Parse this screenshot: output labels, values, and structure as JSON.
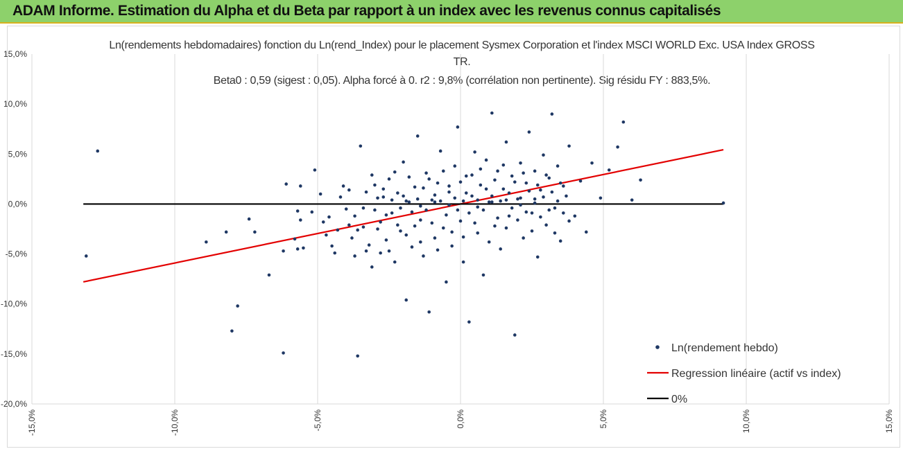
{
  "banner": {
    "text": "ADAM Informe. Estimation du Alpha et du Beta par rapport à un index avec les revenus connus capitalisés",
    "background": "#8dd16b",
    "border_color": "#d8b11e"
  },
  "chart_data": {
    "type": "scatter",
    "title": "Ln(rendements hebdomadaires) fonction du Ln(rend_Index) pour le placement Sysmex Corporation et l'index MSCI WORLD Exc. USA Index GROSS",
    "title_line2": "TR.",
    "subtitle": "Beta0 : 0,59 (sigest : 0,05). Alpha forcé à 0. r2 : 9,8% (corrélation non pertinente). Sig résidu FY : 883,5%.",
    "xlim": [
      -0.15,
      0.15
    ],
    "ylim": [
      -0.2,
      0.15
    ],
    "x_ticks": [
      -0.15,
      -0.1,
      -0.05,
      0.0,
      0.05,
      0.1,
      0.15
    ],
    "x_tick_labels": [
      "-15,0%",
      "-10,0%",
      "-5,0%",
      "0,0%",
      "5,0%",
      "10,0%",
      "15,0%"
    ],
    "y_ticks": [
      -0.2,
      -0.15,
      -0.1,
      -0.05,
      0.0,
      0.05,
      0.1,
      0.15
    ],
    "y_tick_labels": [
      "-20,0%",
      "-15,0%",
      "-10,0%",
      "-5,0%",
      "0,0%",
      "5,0%",
      "10,0%",
      "15,0%"
    ],
    "grid": "vertical",
    "legend_position": "bottom-right",
    "series": [
      {
        "name": "Ln(rendement hebdo)",
        "kind": "scatter",
        "color": "#1f3864",
        "points": [
          [
            -0.131,
            -0.052
          ],
          [
            -0.127,
            0.053
          ],
          [
            -0.089,
            -0.038
          ],
          [
            -0.082,
            -0.028
          ],
          [
            -0.08,
            -0.127
          ],
          [
            -0.078,
            -0.102
          ],
          [
            -0.074,
            -0.015
          ],
          [
            -0.072,
            -0.028
          ],
          [
            -0.067,
            -0.071
          ],
          [
            -0.062,
            -0.047
          ],
          [
            -0.062,
            -0.149
          ],
          [
            -0.061,
            0.02
          ],
          [
            -0.058,
            -0.035
          ],
          [
            -0.057,
            -0.045
          ],
          [
            -0.057,
            -0.007
          ],
          [
            -0.056,
            -0.016
          ],
          [
            -0.056,
            0.018
          ],
          [
            -0.055,
            -0.044
          ],
          [
            -0.051,
            0.034
          ],
          [
            -0.048,
            -0.018
          ],
          [
            -0.046,
            -0.013
          ],
          [
            -0.045,
            -0.042
          ],
          [
            -0.044,
            -0.049
          ],
          [
            -0.042,
            0.007
          ],
          [
            -0.04,
            -0.005
          ],
          [
            -0.039,
            -0.021
          ],
          [
            -0.038,
            -0.034
          ],
          [
            -0.037,
            -0.052
          ],
          [
            -0.036,
            -0.152
          ],
          [
            -0.035,
            0.058
          ],
          [
            -0.034,
            -0.023
          ],
          [
            -0.033,
            0.012
          ],
          [
            -0.032,
            -0.041
          ],
          [
            -0.031,
            -0.063
          ],
          [
            -0.03,
            0.019
          ],
          [
            -0.029,
            -0.025
          ],
          [
            -0.028,
            -0.049
          ],
          [
            -0.027,
            0.007
          ],
          [
            -0.026,
            -0.036
          ],
          [
            -0.025,
            0.025
          ],
          [
            -0.024,
            -0.009
          ],
          [
            -0.023,
            -0.058
          ],
          [
            -0.022,
            0.011
          ],
          [
            -0.021,
            -0.027
          ],
          [
            -0.02,
            0.042
          ],
          [
            -0.019,
            -0.096
          ],
          [
            -0.018,
            0.002
          ],
          [
            -0.017,
            -0.043
          ],
          [
            -0.016,
            0.017
          ],
          [
            -0.015,
            0.068
          ],
          [
            -0.014,
            -0.016
          ],
          [
            -0.013,
            -0.052
          ],
          [
            -0.012,
            0.031
          ],
          [
            -0.011,
            -0.108
          ],
          [
            -0.01,
            0.004
          ],
          [
            -0.009,
            -0.034
          ],
          [
            -0.008,
            0.021
          ],
          [
            -0.007,
            0.053
          ],
          [
            -0.006,
            -0.024
          ],
          [
            -0.005,
            -0.078
          ],
          [
            -0.004,
            0.012
          ],
          [
            -0.003,
            -0.042
          ],
          [
            -0.002,
            0.038
          ],
          [
            -0.001,
            0.077
          ],
          [
            0.0,
            -0.017
          ],
          [
            0.001,
            -0.058
          ],
          [
            0.002,
            0.028
          ],
          [
            0.003,
            -0.118
          ],
          [
            0.004,
            0.008
          ],
          [
            0.005,
            0.052
          ],
          [
            0.006,
            -0.029
          ],
          [
            0.007,
            0.019
          ],
          [
            0.008,
            -0.071
          ],
          [
            0.009,
            0.044
          ],
          [
            0.01,
            0.002
          ],
          [
            0.011,
            0.091
          ],
          [
            0.012,
            -0.022
          ],
          [
            0.013,
            0.033
          ],
          [
            0.014,
            -0.045
          ],
          [
            0.015,
            0.015
          ],
          [
            0.016,
            0.062
          ],
          [
            0.017,
            -0.012
          ],
          [
            0.018,
            0.028
          ],
          [
            0.019,
            -0.131
          ],
          [
            0.02,
            0.005
          ],
          [
            0.021,
            0.041
          ],
          [
            0.022,
            -0.034
          ],
          [
            0.023,
            0.021
          ],
          [
            0.024,
            0.072
          ],
          [
            0.025,
            -0.009
          ],
          [
            0.026,
            0.033
          ],
          [
            0.027,
            -0.053
          ],
          [
            0.028,
            0.014
          ],
          [
            0.029,
            0.049
          ],
          [
            0.03,
            -0.021
          ],
          [
            0.031,
            0.026
          ],
          [
            0.032,
            0.09
          ],
          [
            0.033,
            -0.004
          ],
          [
            0.034,
            0.038
          ],
          [
            0.035,
            -0.037
          ],
          [
            0.036,
            0.018
          ],
          [
            0.038,
            0.058
          ],
          [
            0.04,
            -0.012
          ],
          [
            0.042,
            0.023
          ],
          [
            0.044,
            -0.028
          ],
          [
            0.046,
            0.041
          ],
          [
            0.049,
            0.006
          ],
          [
            0.052,
            0.034
          ],
          [
            0.055,
            0.057
          ],
          [
            0.057,
            0.082
          ],
          [
            0.06,
            0.004
          ],
          [
            0.063,
            0.024
          ],
          [
            0.092,
            0.001
          ],
          [
            -0.052,
            -0.008
          ],
          [
            -0.049,
            0.01
          ],
          [
            -0.047,
            -0.031
          ],
          [
            -0.043,
            -0.026
          ],
          [
            -0.041,
            0.018
          ],
          [
            -0.039,
            0.014
          ],
          [
            -0.037,
            -0.012
          ],
          [
            -0.036,
            -0.026
          ],
          [
            -0.034,
            -0.004
          ],
          [
            -0.033,
            -0.047
          ],
          [
            -0.031,
            0.029
          ],
          [
            -0.03,
            -0.006
          ],
          [
            -0.029,
            0.006
          ],
          [
            -0.028,
            -0.018
          ],
          [
            -0.027,
            0.015
          ],
          [
            -0.026,
            -0.011
          ],
          [
            -0.025,
            -0.047
          ],
          [
            -0.024,
            0.004
          ],
          [
            -0.023,
            0.032
          ],
          [
            -0.022,
            -0.021
          ],
          [
            -0.021,
            -0.004
          ],
          [
            -0.02,
            0.008
          ],
          [
            -0.019,
            -0.031
          ],
          [
            -0.018,
            0.027
          ],
          [
            -0.017,
            -0.008
          ],
          [
            -0.016,
            -0.022
          ],
          [
            -0.015,
            0.005
          ],
          [
            -0.014,
            -0.038
          ],
          [
            -0.013,
            0.016
          ],
          [
            -0.012,
            -0.006
          ],
          [
            -0.011,
            0.025
          ],
          [
            -0.01,
            -0.019
          ],
          [
            -0.009,
            0.009
          ],
          [
            -0.008,
            -0.046
          ],
          [
            -0.007,
            0.003
          ],
          [
            -0.006,
            0.033
          ],
          [
            -0.005,
            -0.011
          ],
          [
            -0.004,
            0.018
          ],
          [
            -0.003,
            -0.028
          ],
          [
            -0.002,
            0.006
          ],
          [
            -0.001,
            -0.006
          ],
          [
            0.0,
            0.022
          ],
          [
            0.001,
            -0.033
          ],
          [
            0.002,
            0.011
          ],
          [
            0.003,
            -0.009
          ],
          [
            0.004,
            0.029
          ],
          [
            0.005,
            -0.019
          ],
          [
            0.006,
            0.004
          ],
          [
            0.007,
            0.035
          ],
          [
            0.008,
            -0.006
          ],
          [
            0.009,
            0.015
          ],
          [
            0.01,
            -0.038
          ],
          [
            0.011,
            0.008
          ],
          [
            0.012,
            0.024
          ],
          [
            0.013,
            -0.014
          ],
          [
            0.014,
            0.003
          ],
          [
            0.015,
            0.039
          ],
          [
            0.016,
            -0.024
          ],
          [
            0.017,
            0.011
          ],
          [
            0.018,
            -0.004
          ],
          [
            0.019,
            0.022
          ],
          [
            0.02,
            -0.016
          ],
          [
            0.021,
            0.006
          ],
          [
            0.022,
            0.031
          ],
          [
            0.023,
            -0.008
          ],
          [
            0.024,
            0.013
          ],
          [
            0.025,
            -0.027
          ],
          [
            0.026,
            0.001
          ],
          [
            0.027,
            0.019
          ],
          [
            0.028,
            -0.013
          ],
          [
            0.029,
            0.007
          ],
          [
            0.03,
            0.029
          ],
          [
            0.031,
            -0.006
          ],
          [
            0.032,
            0.012
          ],
          [
            0.033,
            -0.029
          ],
          [
            0.034,
            0.003
          ],
          [
            0.035,
            0.021
          ],
          [
            0.036,
            -0.009
          ],
          [
            0.037,
            0.008
          ],
          [
            0.038,
            -0.017
          ],
          [
            -0.009,
            0.002
          ],
          [
            -0.004,
            -0.001
          ],
          [
            0.001,
            0.003
          ],
          [
            0.006,
            -0.003
          ],
          [
            0.011,
            0.002
          ],
          [
            0.016,
            0.004
          ],
          [
            0.021,
            -0.001
          ],
          [
            0.026,
            0.005
          ],
          [
            -0.014,
            -0.002
          ],
          [
            -0.019,
            0.003
          ]
        ]
      },
      {
        "name": "Regression linéaire (actif vs index)",
        "kind": "line",
        "color": "#e30000",
        "x": [
          -0.132,
          0.092
        ],
        "y": [
          -0.0779,
          0.0543
        ]
      },
      {
        "name": "0%",
        "kind": "line",
        "color": "#000000",
        "x": [
          -0.132,
          0.092
        ],
        "y": [
          0.0,
          0.0
        ]
      }
    ]
  }
}
